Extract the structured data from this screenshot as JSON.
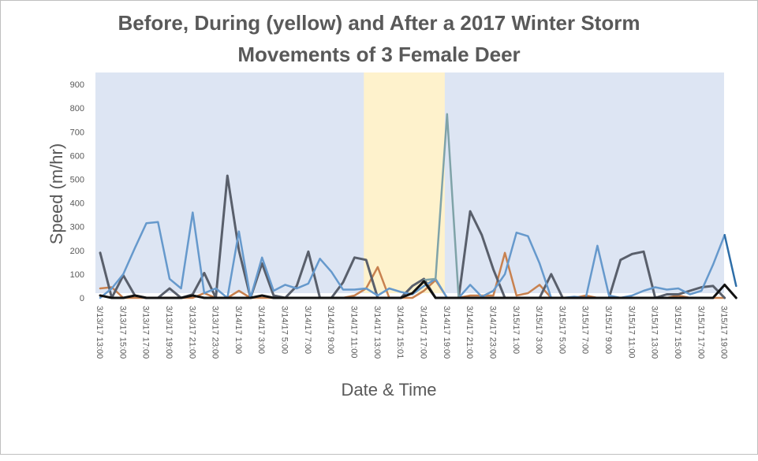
{
  "chart_data": {
    "type": "line",
    "title_line1": "Before, During (yellow) and After a 2017 Winter Storm",
    "title_line2": "Movements of 3 Female Deer",
    "xlabel": "Date & Time",
    "ylabel": "Speed (m/hr)",
    "ylim": [
      0,
      950
    ],
    "yticks": [
      0,
      100,
      200,
      300,
      400,
      500,
      600,
      700,
      800,
      900
    ],
    "xlim": [
      0,
      54
    ],
    "storm_window": [
      22.8,
      29.8
    ],
    "background_colors": {
      "before_after": "#dde5f3",
      "storm": "#fef2cc"
    },
    "x_tick_positions": [
      0,
      2,
      4,
      6,
      8,
      10,
      12,
      14,
      16,
      18,
      20,
      22,
      24,
      26,
      28,
      30,
      32,
      34,
      36,
      38,
      40,
      42,
      44,
      46,
      48,
      50,
      52,
      54
    ],
    "x_tick_labels": [
      "3/13/17 13:00",
      "3/13/17 15:00",
      "3/13/17 17:00",
      "3/13/17 19:00",
      "3/13/17 21:00",
      "3/13/17 23:00",
      "3/14/17 1:00",
      "3/14/17 3:00",
      "3/14/17 5:00",
      "3/14/17 7:00",
      "3/14/17 9:00",
      "3/14/17 11:00",
      "3/14/17 13:00",
      "3/14/17 15:01",
      "3/14/17 17:00",
      "3/14/17 19:00",
      "3/14/17 21:00",
      "3/14/17 23:00",
      "3/15/17 1:00",
      "3/15/17 3:00",
      "3/15/17 5:00",
      "3/15/17 7:00",
      "3/15/17 9:00",
      "3/15/17 11:00",
      "3/15/17 13:00",
      "3/15/17 15:00",
      "3/15/17 17:00",
      "3/15/17 19:00"
    ],
    "series": [
      {
        "color": "#c8814f",
        "width": 2.5,
        "x": [
          0,
          1,
          2,
          3,
          4,
          5,
          6,
          7,
          8,
          9,
          10,
          11,
          12,
          13,
          14,
          15,
          16,
          17,
          18,
          19,
          20,
          21,
          22,
          23,
          24,
          25,
          26,
          27,
          28,
          29,
          30,
          31,
          32,
          33,
          34,
          35,
          36,
          37,
          38,
          39,
          40,
          41,
          42,
          43,
          44,
          45,
          46,
          47,
          48,
          49,
          50,
          51,
          52,
          53,
          54
        ],
        "y": [
          40,
          45,
          0,
          0,
          0,
          0,
          0,
          0,
          0,
          20,
          0,
          0,
          30,
          0,
          0,
          0,
          0,
          0,
          0,
          0,
          0,
          0,
          10,
          40,
          130,
          0,
          0,
          0,
          30,
          75,
          0,
          0,
          10,
          10,
          10,
          190,
          10,
          20,
          55,
          0,
          0,
          0,
          10,
          0,
          0,
          0,
          0,
          0,
          0,
          0,
          10,
          0,
          0,
          0,
          0
        ]
      },
      {
        "color": "#595f6b",
        "width": 3,
        "x": [
          0,
          1,
          2,
          3,
          4,
          5,
          6,
          7,
          8,
          9,
          10,
          11,
          12,
          13,
          14,
          15,
          16,
          17,
          18,
          19,
          20,
          21,
          22,
          23,
          24,
          25,
          26,
          27,
          28,
          29,
          30,
          31,
          32,
          33,
          34,
          35,
          36,
          37,
          38,
          39,
          40,
          41,
          42,
          43,
          44,
          45,
          46,
          47,
          48,
          49,
          50,
          51,
          52,
          53,
          54
        ],
        "y": [
          190,
          0,
          95,
          10,
          0,
          0,
          40,
          0,
          15,
          105,
          0,
          515,
          200,
          0,
          145,
          10,
          0,
          50,
          195,
          0,
          0,
          65,
          170,
          160,
          0,
          0,
          0,
          50,
          80,
          0,
          0,
          0,
          365,
          265,
          120,
          0,
          0,
          0,
          0,
          100,
          0,
          0,
          0,
          0,
          0,
          160,
          185,
          195,
          0,
          15,
          15,
          30,
          45,
          50,
          0
        ]
      },
      {
        "color": "#6699cc",
        "width": 2.5,
        "x": [
          0,
          1,
          2,
          3,
          4,
          5,
          6,
          7,
          8,
          9,
          10,
          11,
          12,
          13,
          14,
          15,
          16,
          17,
          18,
          19,
          20,
          21,
          22,
          23,
          24,
          25,
          26,
          27,
          28,
          29,
          30,
          31,
          32,
          33,
          34,
          35,
          36,
          37,
          38,
          39,
          40,
          41,
          42,
          43,
          44,
          45,
          46,
          47,
          48,
          49,
          50,
          51,
          52,
          53,
          54
        ],
        "y": [
          0,
          40,
          100,
          210,
          315,
          320,
          80,
          40,
          360,
          20,
          40,
          0,
          280,
          0,
          170,
          30,
          55,
          40,
          60,
          165,
          110,
          35,
          35,
          40,
          10,
          40,
          25,
          15,
          50,
          80,
          0,
          0,
          55,
          5,
          30,
          100,
          275,
          260,
          145,
          0,
          0,
          5,
          0,
          220,
          10,
          0,
          10,
          30,
          45,
          35,
          40,
          15,
          30,
          140,
          265
        ]
      },
      {
        "color": "#7fa3a8",
        "width": 2.5,
        "x": [
          28,
          29,
          30,
          31
        ],
        "y": [
          75,
          80,
          775,
          0
        ]
      },
      {
        "color": "#2e6ea8",
        "width": 2.5,
        "x": [
          54,
          55
        ],
        "y": [
          265,
          50
        ]
      },
      {
        "color": "#111111",
        "width": 3,
        "x": [
          0,
          1,
          2,
          3,
          4,
          5,
          6,
          7,
          8,
          9,
          10,
          11,
          12,
          13,
          14,
          15,
          16,
          17,
          18,
          19,
          20,
          21,
          22,
          23,
          24,
          25,
          26,
          27,
          28,
          29,
          30,
          31,
          32,
          33,
          34,
          35,
          36,
          37,
          38,
          39,
          40,
          41,
          42,
          43,
          44,
          45,
          46,
          47,
          48,
          49,
          50,
          51,
          52,
          53,
          54,
          55
        ],
        "y": [
          10,
          0,
          0,
          10,
          0,
          0,
          0,
          0,
          10,
          0,
          0,
          0,
          0,
          0,
          10,
          0,
          0,
          0,
          0,
          0,
          0,
          0,
          0,
          0,
          0,
          0,
          0,
          20,
          70,
          0,
          0,
          0,
          0,
          0,
          0,
          0,
          0,
          0,
          0,
          0,
          0,
          0,
          0,
          0,
          0,
          0,
          0,
          0,
          0,
          0,
          0,
          0,
          0,
          0,
          55,
          0
        ]
      }
    ]
  }
}
